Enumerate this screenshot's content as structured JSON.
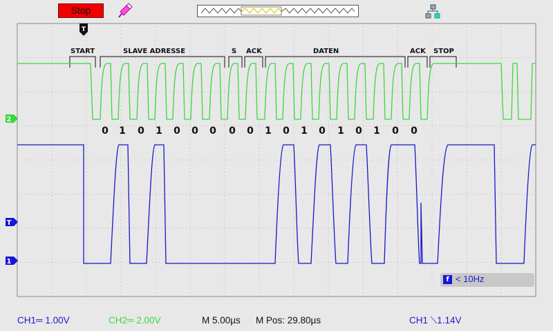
{
  "toolbar": {
    "run_state": "Stop",
    "probe_icon": "probe-icon",
    "network_icon": "network-icon",
    "trigger_marker": "T"
  },
  "annotations": {
    "segments": [
      {
        "label": "START"
      },
      {
        "label": "SLAVE ADRESSE"
      },
      {
        "label": "S"
      },
      {
        "label": "ACK"
      },
      {
        "label": "DATEN"
      },
      {
        "label": "ACK"
      },
      {
        "label": "STOP"
      }
    ],
    "bits": [
      "0",
      "1",
      "0",
      "1",
      "0",
      "0",
      "0",
      "0",
      "0",
      "1",
      "0",
      "1",
      "0",
      "1",
      "0",
      "1",
      "0",
      "0"
    ]
  },
  "markers": {
    "ch2": "2",
    "trigger_level": "T",
    "ch1": "1"
  },
  "trigger_info": {
    "icon": "f",
    "text": "< 10Hz"
  },
  "status": {
    "ch1": "CH1═ 1.00V",
    "ch2": "CH2═ 2.00V",
    "timebase": "M 5.00µs",
    "mpos": "M Pos: 29.80µs",
    "trigger": "CH1 ⟍1.14V"
  },
  "colors": {
    "ch1": "#1616cc",
    "ch2": "#3ad83a",
    "grid": "#b4b4b4",
    "stop": "#f00000"
  }
}
